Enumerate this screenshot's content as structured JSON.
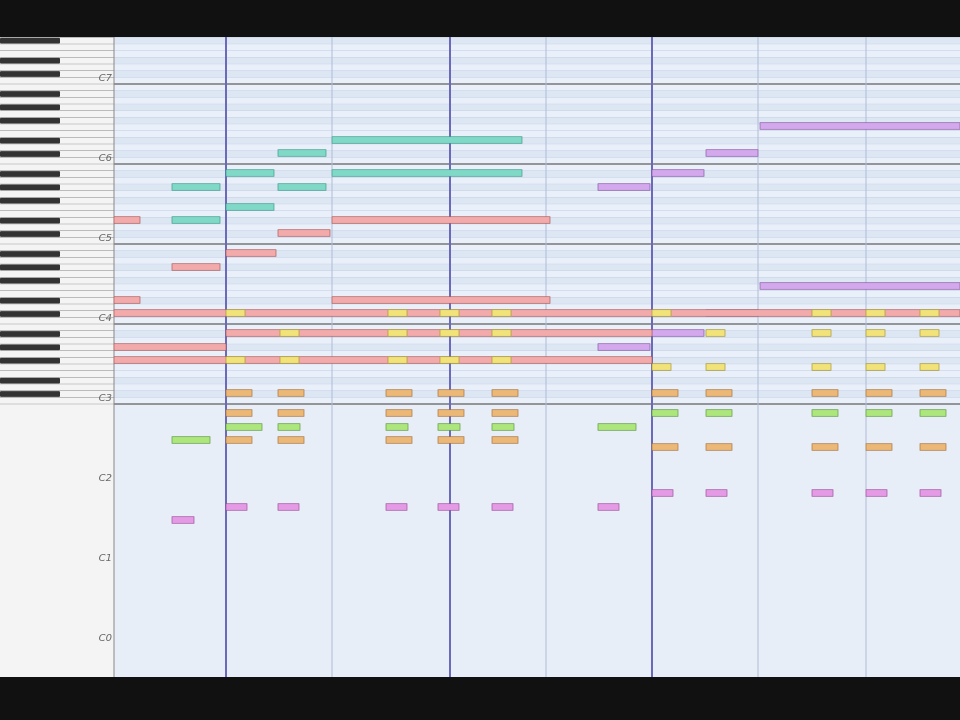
{
  "keyboard": {
    "octave_labels": [
      "C7",
      "C6",
      "C5",
      "C4",
      "C3",
      "C2",
      "C1",
      "C0"
    ]
  }
}
